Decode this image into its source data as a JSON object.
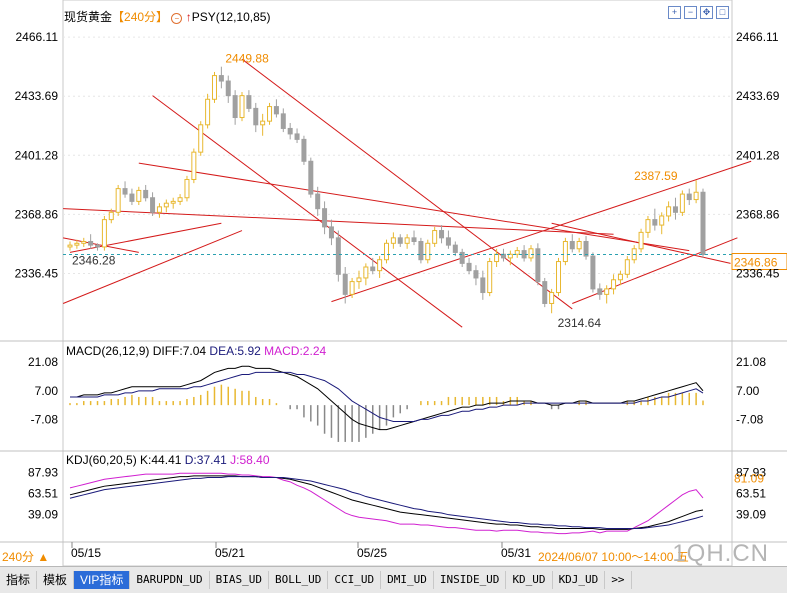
{
  "header": {
    "instrument": "现货黄金",
    "period": "【240分】",
    "indicator": "PSY(12,10,85)"
  },
  "macd_header": {
    "name": "MACD(26,12,9)",
    "diff": "DIFF:7.04",
    "dea": "DEA:5.92",
    "macd": "MACD:2.24"
  },
  "kdj_header": {
    "name": "KDJ(60,20,5)",
    "k": "K:44.41",
    "d": "D:37.41",
    "j": "J:58.40"
  },
  "period_badge": "240分 ▲",
  "crosshair_time": "2024/06/07 10:00～14:00 五",
  "watermark": "1QH.CN",
  "icons": [
    "zoom-in-icon",
    "zoom-out-icon",
    "move-icon",
    "restore-icon"
  ],
  "toolbar": {
    "items": [
      "指标",
      "模板",
      "VIP指标",
      "BARUPDN_UD",
      "BIAS_UD",
      "BOLL_UD",
      "CCI_UD",
      "DMI_UD",
      "INSIDE_UD",
      "KD_UD",
      "KDJ_UD",
      ">>"
    ],
    "active_index": 2
  },
  "colors": {
    "up": "#e8b830",
    "down": "#a0a0a0",
    "trendline": "#d41a1a",
    "price_tag": "#f08c00",
    "dif": "#000000",
    "dea": "#1a1a7a",
    "j_line": "#d020d0"
  },
  "chart_data": [
    {
      "type": "candlestick",
      "yaxis_ticks": [
        2466.11,
        2433.69,
        2401.28,
        2368.86,
        2336.45
      ],
      "ylim": [
        2306,
        2470
      ],
      "x_labels": [
        "05/15",
        "05/21",
        "05/25",
        "05/31"
      ],
      "annotations": {
        "high": 2449.88,
        "low": 2314.64,
        "left_low": 2346.28,
        "recent_high": 2387.59
      },
      "last_price": 2346.86,
      "candles": [
        [
          2351,
          2354,
          2349,
          2352
        ],
        [
          2352,
          2355,
          2350,
          2353
        ],
        [
          2353,
          2356,
          2351,
          2354
        ],
        [
          2354,
          2358,
          2350,
          2352
        ],
        [
          2352,
          2353,
          2349,
          2351
        ],
        [
          2351,
          2368,
          2349,
          2366
        ],
        [
          2366,
          2372,
          2364,
          2370
        ],
        [
          2370,
          2385,
          2368,
          2383
        ],
        [
          2383,
          2387,
          2378,
          2380
        ],
        [
          2380,
          2383,
          2374,
          2376
        ],
        [
          2376,
          2384,
          2374,
          2382
        ],
        [
          2382,
          2385,
          2376,
          2378
        ],
        [
          2378,
          2381,
          2368,
          2370
        ],
        [
          2370,
          2375,
          2367,
          2373
        ],
        [
          2373,
          2377,
          2370,
          2375
        ],
        [
          2375,
          2378,
          2372,
          2376
        ],
        [
          2376,
          2380,
          2374,
          2378
        ],
        [
          2378,
          2390,
          2376,
          2388
        ],
        [
          2388,
          2405,
          2386,
          2403
        ],
        [
          2403,
          2420,
          2401,
          2418
        ],
        [
          2418,
          2435,
          2416,
          2432
        ],
        [
          2432,
          2447,
          2430,
          2445
        ],
        [
          2445,
          2449.88,
          2438,
          2442
        ],
        [
          2442,
          2445,
          2430,
          2434
        ],
        [
          2434,
          2437,
          2418,
          2422
        ],
        [
          2422,
          2436,
          2420,
          2434
        ],
        [
          2434,
          2437,
          2425,
          2427
        ],
        [
          2427,
          2430,
          2414,
          2418
        ],
        [
          2418,
          2424,
          2412,
          2420
        ],
        [
          2420,
          2430,
          2418,
          2428
        ],
        [
          2428,
          2432,
          2422,
          2424
        ],
        [
          2424,
          2427,
          2414,
          2416
        ],
        [
          2416,
          2419,
          2410,
          2413
        ],
        [
          2413,
          2416,
          2408,
          2410
        ],
        [
          2410,
          2412,
          2396,
          2398
        ],
        [
          2398,
          2400,
          2378,
          2380
        ],
        [
          2380,
          2384,
          2368,
          2372
        ],
        [
          2372,
          2376,
          2358,
          2362
        ],
        [
          2362,
          2366,
          2352,
          2356
        ],
        [
          2356,
          2360,
          2332,
          2336
        ],
        [
          2336,
          2340,
          2320,
          2325
        ],
        [
          2325,
          2334,
          2323,
          2332
        ],
        [
          2332,
          2338,
          2328,
          2334
        ],
        [
          2334,
          2342,
          2330,
          2340
        ],
        [
          2340,
          2345,
          2336,
          2338
        ],
        [
          2338,
          2346,
          2334,
          2344
        ],
        [
          2344,
          2355,
          2342,
          2353
        ],
        [
          2353,
          2359,
          2350,
          2356
        ],
        [
          2356,
          2358,
          2351,
          2353
        ],
        [
          2353,
          2358,
          2350,
          2356
        ],
        [
          2356,
          2360,
          2352,
          2354
        ],
        [
          2354,
          2356,
          2342,
          2344
        ],
        [
          2344,
          2355,
          2342,
          2353
        ],
        [
          2353,
          2362,
          2351,
          2360
        ],
        [
          2360,
          2363,
          2353,
          2356
        ],
        [
          2356,
          2360,
          2350,
          2352
        ],
        [
          2352,
          2354,
          2346,
          2348
        ],
        [
          2348,
          2350,
          2340,
          2342
        ],
        [
          2342,
          2345,
          2336,
          2338
        ],
        [
          2338,
          2341,
          2330,
          2334
        ],
        [
          2334,
          2338,
          2322,
          2326
        ],
        [
          2326,
          2345,
          2324,
          2343
        ],
        [
          2343,
          2350,
          2340,
          2347
        ],
        [
          2347,
          2350,
          2343,
          2345
        ],
        [
          2345,
          2349,
          2341,
          2347
        ],
        [
          2347,
          2351,
          2345,
          2349
        ],
        [
          2349,
          2352,
          2343,
          2345
        ],
        [
          2345,
          2352,
          2343,
          2350
        ],
        [
          2350,
          2353,
          2330,
          2332
        ],
        [
          2332,
          2334,
          2318,
          2320
        ],
        [
          2320,
          2328,
          2314.64,
          2326
        ],
        [
          2326,
          2345,
          2324,
          2343
        ],
        [
          2343,
          2356,
          2341,
          2354
        ],
        [
          2354,
          2358,
          2348,
          2350
        ],
        [
          2350,
          2356,
          2348,
          2354
        ],
        [
          2354,
          2357,
          2344,
          2346
        ],
        [
          2346,
          2348,
          2326,
          2328
        ],
        [
          2328,
          2331,
          2322,
          2325
        ],
        [
          2325,
          2330,
          2320,
          2328
        ],
        [
          2328,
          2336,
          2325,
          2333
        ],
        [
          2333,
          2338,
          2330,
          2336
        ],
        [
          2336,
          2346,
          2334,
          2344
        ],
        [
          2344,
          2352,
          2342,
          2350
        ],
        [
          2350,
          2361,
          2348,
          2359
        ],
        [
          2359,
          2368,
          2356,
          2366
        ],
        [
          2366,
          2372,
          2360,
          2363
        ],
        [
          2363,
          2370,
          2358,
          2368
        ],
        [
          2368,
          2376,
          2365,
          2373
        ],
        [
          2373,
          2378,
          2366,
          2370
        ],
        [
          2370,
          2382,
          2368,
          2380
        ],
        [
          2380,
          2383,
          2374,
          2377
        ],
        [
          2377,
          2387.59,
          2375,
          2381
        ],
        [
          2381,
          2383,
          2345,
          2346.86
        ]
      ]
    },
    {
      "type": "macd",
      "yaxis_ticks": [
        21.08,
        7.0,
        -7.08
      ],
      "ylim": [
        -20,
        26
      ],
      "dif": [
        4,
        4,
        5,
        5,
        5,
        6,
        6,
        7,
        8,
        9,
        9,
        9,
        9,
        9,
        9,
        9,
        9,
        10,
        11,
        12,
        14,
        16,
        17,
        18,
        18,
        19,
        19,
        18,
        18,
        18,
        17,
        16,
        15,
        14,
        12,
        10,
        8,
        5,
        2,
        -1,
        -4,
        -7,
        -9,
        -10,
        -11,
        -12,
        -12,
        -11,
        -10,
        -9,
        -8,
        -7,
        -6,
        -5,
        -4,
        -3,
        -2,
        -1,
        -1,
        0,
        0,
        1,
        1,
        1,
        2,
        2,
        2,
        2,
        1,
        1,
        0,
        0,
        1,
        1,
        2,
        2,
        1,
        1,
        1,
        1,
        1,
        2,
        2,
        3,
        4,
        5,
        6,
        7,
        8,
        9,
        10,
        11,
        7.04
      ],
      "dea": [
        4,
        4,
        4,
        4,
        4,
        5,
        5,
        5,
        6,
        6,
        7,
        7,
        7,
        8,
        8,
        8,
        8,
        8,
        9,
        9,
        10,
        11,
        12,
        13,
        14,
        15,
        15,
        16,
        16,
        16,
        16,
        16,
        16,
        15,
        15,
        14,
        13,
        12,
        10,
        8,
        5,
        2,
        0,
        -2,
        -4,
        -6,
        -7,
        -8,
        -8,
        -8,
        -8,
        -7,
        -7,
        -6,
        -5,
        -5,
        -4,
        -3,
        -3,
        -2,
        -2,
        -1,
        -1,
        0,
        0,
        0,
        1,
        1,
        1,
        1,
        1,
        1,
        1,
        1,
        1,
        1,
        1,
        1,
        1,
        1,
        1,
        1,
        1,
        2,
        2,
        3,
        4,
        4,
        5,
        6,
        7,
        8,
        5.92
      ],
      "hist": [
        1,
        1,
        2,
        2,
        2,
        2,
        3,
        3,
        4,
        5,
        4,
        4,
        4,
        2,
        2,
        2,
        2,
        3,
        4,
        5,
        7,
        9,
        10,
        9,
        8,
        7,
        7,
        4,
        3,
        3,
        1,
        0,
        -2,
        -2,
        -6,
        -8,
        -10,
        -14,
        -16,
        -18,
        -18,
        -18,
        -18,
        -16,
        -14,
        -12,
        -10,
        -6,
        -4,
        -2,
        0,
        2,
        2,
        2,
        2,
        4,
        4,
        4,
        4,
        4,
        4,
        4,
        4,
        2,
        4,
        4,
        2,
        2,
        0,
        0,
        -2,
        -2,
        0,
        0,
        2,
        2,
        0,
        0,
        0,
        0,
        0,
        2,
        2,
        2,
        4,
        4,
        4,
        6,
        6,
        6,
        6,
        6,
        2.24
      ]
    },
    {
      "type": "kdj",
      "yaxis_ticks": [
        87.93,
        63.51,
        39.09
      ],
      "ylim": [
        12,
        100
      ],
      "j_value_tag": 81.09,
      "k": [
        62,
        64,
        66,
        68,
        70,
        72,
        73,
        74,
        75,
        76,
        77,
        78,
        79,
        80,
        81,
        82,
        83,
        83,
        84,
        84,
        84,
        84,
        84,
        84,
        84,
        83,
        83,
        83,
        82,
        82,
        82,
        81,
        80,
        78,
        76,
        74,
        71,
        68,
        65,
        62,
        59,
        56,
        54,
        52,
        50,
        48,
        46,
        44,
        42,
        41,
        40,
        39,
        38,
        37,
        36,
        35,
        34,
        33,
        32,
        31,
        30,
        29,
        28,
        28,
        27,
        27,
        26,
        25,
        25,
        24,
        24,
        23,
        23,
        23,
        23,
        23,
        23,
        22,
        22,
        22,
        22,
        22,
        23,
        24,
        25,
        27,
        29,
        31,
        34,
        37,
        40,
        43,
        44.41
      ],
      "d": [
        58,
        60,
        62,
        64,
        66,
        68,
        69,
        70,
        71,
        72,
        73,
        74,
        75,
        76,
        77,
        78,
        79,
        80,
        81,
        81,
        82,
        82,
        82,
        83,
        83,
        83,
        83,
        83,
        82,
        82,
        82,
        82,
        81,
        80,
        79,
        78,
        76,
        74,
        72,
        70,
        68,
        65,
        63,
        60,
        58,
        56,
        54,
        52,
        50,
        48,
        46,
        45,
        43,
        42,
        41,
        39,
        38,
        37,
        36,
        35,
        34,
        33,
        32,
        31,
        30,
        30,
        29,
        28,
        28,
        27,
        27,
        26,
        26,
        25,
        25,
        24,
        24,
        24,
        23,
        23,
        23,
        23,
        23,
        23,
        24,
        25,
        26,
        27,
        29,
        31,
        33,
        35,
        37.41
      ],
      "j": [
        70,
        72,
        74,
        76,
        78,
        80,
        81,
        82,
        83,
        84,
        85,
        86,
        86,
        86,
        86,
        86,
        87,
        87,
        87,
        87,
        87,
        87,
        87,
        86,
        86,
        85,
        85,
        84,
        83,
        83,
        82,
        79,
        77,
        73,
        70,
        66,
        61,
        56,
        51,
        46,
        41,
        38,
        36,
        35,
        34,
        33,
        32,
        30,
        28,
        28,
        28,
        27,
        27,
        26,
        25,
        24,
        24,
        23,
        22,
        21,
        21,
        21,
        20,
        21,
        21,
        21,
        20,
        19,
        19,
        18,
        18,
        17,
        17,
        18,
        18,
        19,
        20,
        18,
        20,
        20,
        20,
        20,
        24,
        28,
        32,
        38,
        44,
        50,
        56,
        62,
        66,
        68,
        58.4
      ]
    }
  ]
}
